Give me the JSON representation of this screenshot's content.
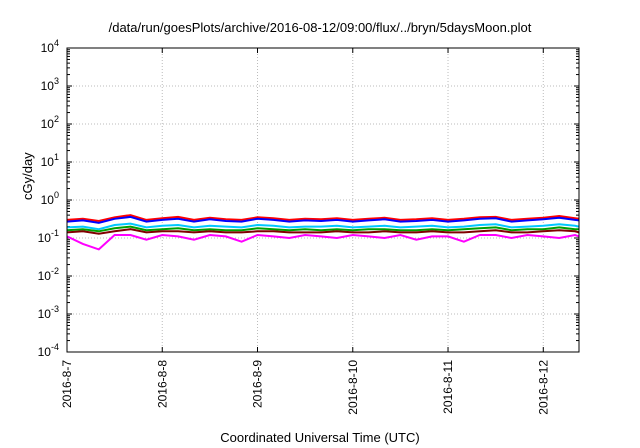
{
  "chart_data": {
    "type": "line",
    "title": "/data/run/goesPlots/archive/2016-08-12/09:00/flux/../bryn/5daysMoon.plot",
    "xlabel": "Coordinated Universal Time (UTC)",
    "ylabel": "cGy/day",
    "yscale": "log",
    "ylim": [
      0.0001,
      10000
    ],
    "xlim": [
      "2016-08-07T00:00",
      "2016-08-12T09:00"
    ],
    "grid": true,
    "legend": "none",
    "y_tick_labels": [
      {
        "base": "10",
        "exp": "-4"
      },
      {
        "base": "10",
        "exp": "-3"
      },
      {
        "base": "10",
        "exp": "-2"
      },
      {
        "base": "10",
        "exp": "-1"
      },
      {
        "base": "10",
        "exp": "0"
      },
      {
        "base": "10",
        "exp": "1"
      },
      {
        "base": "10",
        "exp": "2"
      },
      {
        "base": "10",
        "exp": "3"
      },
      {
        "base": "10",
        "exp": "4"
      }
    ],
    "x_tick_labels": [
      "2016-8-7",
      "2016-8-8",
      "2016-8-9",
      "2016-8-10",
      "2016-8-11",
      "2016-8-12"
    ],
    "x": [
      "2016-08-07T00:00",
      "2016-08-07T04:00",
      "2016-08-07T08:00",
      "2016-08-07T12:00",
      "2016-08-07T16:00",
      "2016-08-07T20:00",
      "2016-08-08T00:00",
      "2016-08-08T04:00",
      "2016-08-08T08:00",
      "2016-08-08T12:00",
      "2016-08-08T16:00",
      "2016-08-08T20:00",
      "2016-08-09T00:00",
      "2016-08-09T04:00",
      "2016-08-09T08:00",
      "2016-08-09T12:00",
      "2016-08-09T16:00",
      "2016-08-09T20:00",
      "2016-08-10T00:00",
      "2016-08-10T04:00",
      "2016-08-10T08:00",
      "2016-08-10T12:00",
      "2016-08-10T16:00",
      "2016-08-10T20:00",
      "2016-08-11T00:00",
      "2016-08-11T04:00",
      "2016-08-11T08:00",
      "2016-08-11T12:00",
      "2016-08-11T16:00",
      "2016-08-11T20:00",
      "2016-08-12T00:00",
      "2016-08-12T04:00",
      "2016-08-12T08:00",
      "2016-08-12T09:00"
    ],
    "series": [
      {
        "color": "#ff0000",
        "values": [
          0.3,
          0.32,
          0.28,
          0.35,
          0.4,
          0.3,
          0.33,
          0.36,
          0.3,
          0.34,
          0.31,
          0.3,
          0.35,
          0.33,
          0.3,
          0.32,
          0.31,
          0.33,
          0.3,
          0.32,
          0.34,
          0.3,
          0.31,
          0.33,
          0.3,
          0.32,
          0.35,
          0.36,
          0.3,
          0.32,
          0.34,
          0.38,
          0.33,
          0.32
        ]
      },
      {
        "color": "#0000ff",
        "values": [
          0.27,
          0.29,
          0.25,
          0.32,
          0.36,
          0.27,
          0.3,
          0.32,
          0.27,
          0.31,
          0.28,
          0.27,
          0.32,
          0.3,
          0.27,
          0.29,
          0.28,
          0.3,
          0.27,
          0.29,
          0.31,
          0.27,
          0.28,
          0.3,
          0.27,
          0.29,
          0.32,
          0.33,
          0.27,
          0.29,
          0.31,
          0.34,
          0.3,
          0.29
        ]
      },
      {
        "color": "#00c8ff",
        "values": [
          0.19,
          0.2,
          0.17,
          0.22,
          0.24,
          0.19,
          0.21,
          0.22,
          0.19,
          0.21,
          0.2,
          0.19,
          0.22,
          0.21,
          0.19,
          0.2,
          0.2,
          0.21,
          0.19,
          0.2,
          0.21,
          0.19,
          0.2,
          0.21,
          0.19,
          0.2,
          0.22,
          0.23,
          0.19,
          0.2,
          0.21,
          0.23,
          0.21,
          0.2
        ]
      },
      {
        "color": "#00a000",
        "values": [
          0.16,
          0.17,
          0.15,
          0.18,
          0.2,
          0.16,
          0.17,
          0.18,
          0.16,
          0.17,
          0.16,
          0.16,
          0.18,
          0.17,
          0.16,
          0.17,
          0.16,
          0.17,
          0.16,
          0.17,
          0.17,
          0.16,
          0.16,
          0.17,
          0.16,
          0.17,
          0.18,
          0.19,
          0.16,
          0.17,
          0.17,
          0.19,
          0.17,
          0.17
        ]
      },
      {
        "color": "#800000",
        "values": [
          0.14,
          0.15,
          0.13,
          0.15,
          0.17,
          0.14,
          0.15,
          0.15,
          0.14,
          0.15,
          0.14,
          0.14,
          0.15,
          0.15,
          0.14,
          0.14,
          0.14,
          0.15,
          0.14,
          0.14,
          0.15,
          0.14,
          0.14,
          0.15,
          0.14,
          0.14,
          0.15,
          0.16,
          0.14,
          0.14,
          0.15,
          0.16,
          0.15,
          0.14
        ]
      },
      {
        "color": "#ff00ff",
        "values": [
          0.11,
          0.07,
          0.05,
          0.12,
          0.12,
          0.09,
          0.12,
          0.11,
          0.09,
          0.12,
          0.11,
          0.08,
          0.12,
          0.11,
          0.1,
          0.12,
          0.11,
          0.1,
          0.12,
          0.11,
          0.1,
          0.12,
          0.09,
          0.11,
          0.11,
          0.08,
          0.12,
          0.12,
          0.1,
          0.12,
          0.11,
          0.1,
          0.12,
          0.11
        ]
      }
    ]
  }
}
